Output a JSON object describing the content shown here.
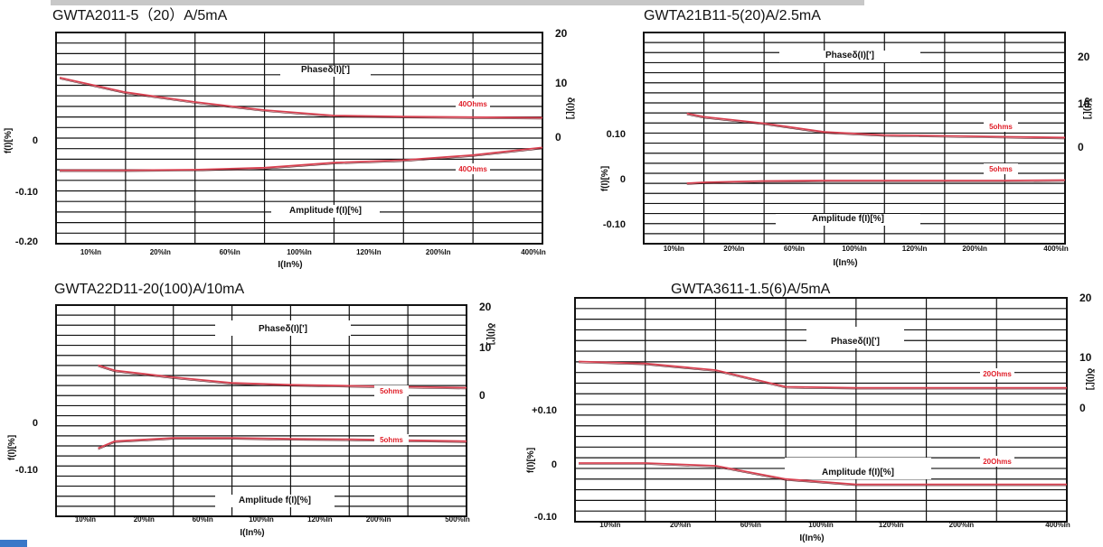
{
  "chart_data": [
    {
      "type": "line",
      "title": "GWTA2011-5（20）A/5mA",
      "xlabel": "I(In%)",
      "categories": [
        "10%In",
        "20%In",
        "60%In",
        "100%In",
        "120%In",
        "200%In",
        "400%In"
      ],
      "y_left_ticks": [
        "0",
        "-0.10",
        "-0.20"
      ],
      "y_left_label": "f(I)[%]",
      "y_right_ticks": [
        "20",
        "10",
        "0"
      ],
      "y_right_label": "δ(I)[']",
      "phase_label": "Phaseδ(I)[']",
      "amplitude_label": "Amplitude f(I)[%]",
      "series": [
        {
          "name": "40Ohms",
          "axis": "phase",
          "x": [
            1,
            10,
            20,
            60,
            100,
            120,
            200,
            400
          ],
          "values": [
            11,
            8.3,
            6.5,
            5,
            4,
            3.8,
            3.7,
            3.6
          ]
        },
        {
          "name": "40Ohms",
          "axis": "amplitude",
          "x": [
            1,
            10,
            20,
            60,
            100,
            120,
            200,
            400
          ],
          "values": [
            -0.06,
            -0.06,
            -0.059,
            -0.055,
            -0.045,
            -0.04,
            -0.03,
            -0.015
          ]
        }
      ]
    },
    {
      "type": "line",
      "title": "GWTA21B11-5(20)A/2.5mA",
      "xlabel": "I(In%)",
      "categories": [
        "10%In",
        "20%In",
        "60%In",
        "100%In",
        "120%In",
        "200%In",
        "400%In"
      ],
      "y_left_ticks": [
        "0.10",
        "0",
        "-0.10"
      ],
      "y_left_label": "f(I)[%]",
      "y_right_ticks": [
        "20",
        "10",
        "0"
      ],
      "y_right_label": "δ(I)[']",
      "phase_label": "Phaseδ(I)[']",
      "amplitude_label": "Amplitude f(I)[%]",
      "series": [
        {
          "name": "5ohms",
          "axis": "phase",
          "x": [
            5,
            10,
            20,
            60,
            100,
            120,
            200,
            400
          ],
          "values": [
            7.8,
            7,
            5.5,
            3.5,
            2.8,
            2.6,
            2.4,
            2.2
          ]
        },
        {
          "name": "5ohms",
          "axis": "amplitude",
          "x": [
            5,
            10,
            20,
            60,
            100,
            120,
            200,
            400
          ],
          "values": [
            -0.01,
            -0.008,
            -0.005,
            -0.004,
            -0.004,
            -0.004,
            -0.004,
            -0.003
          ]
        }
      ]
    },
    {
      "type": "line",
      "title": "GWTA22D11-20(100)A/10mA",
      "xlabel": "I(In%)",
      "categories": [
        "10%In",
        "20%In",
        "60%In",
        "100%In",
        "120%In",
        "200%In",
        "500%In"
      ],
      "y_left_ticks": [
        "0",
        "-0.10"
      ],
      "y_left_label": "f(I)[%]",
      "y_right_ticks": [
        "20",
        "10",
        "0"
      ],
      "y_right_label": "δ(I)[']",
      "phase_label": "Phaseδ(I)[']",
      "amplitude_label": "Amplitude f(I)[%]",
      "series": [
        {
          "name": "5ohms",
          "axis": "phase",
          "x": [
            5,
            10,
            20,
            60,
            100,
            120,
            200,
            500
          ],
          "values": [
            6.3,
            5.2,
            3.8,
            2.6,
            2.2,
            2,
            1.8,
            1.6
          ]
        },
        {
          "name": "5ohms",
          "axis": "amplitude",
          "x": [
            5,
            10,
            20,
            60,
            100,
            120,
            200,
            500
          ],
          "values": [
            -0.055,
            -0.04,
            -0.033,
            -0.033,
            -0.035,
            -0.036,
            -0.038,
            -0.04
          ]
        }
      ]
    },
    {
      "type": "line",
      "title": "GWTA3611-1.5(6)A/5mA",
      "xlabel": "I(In%)",
      "categories": [
        "10%In",
        "20%In",
        "60%In",
        "100%In",
        "120%In",
        "200%In",
        "400%In"
      ],
      "y_left_ticks": [
        "+0.10",
        "0",
        "-0.10"
      ],
      "y_left_label": "f(I)[%]",
      "y_right_ticks": [
        "20",
        "10",
        "0"
      ],
      "y_right_label": "δ(I)[']",
      "phase_label": "Phaseδ(I)[']",
      "amplitude_label": "Amplitude f(I)[%]",
      "series": [
        {
          "name": "20Ohms",
          "axis": "phase",
          "x": [
            1,
            10,
            20,
            60,
            100,
            120,
            200,
            400
          ],
          "values": [
            9.2,
            8.8,
            7.5,
            4.2,
            4,
            4,
            4,
            4
          ]
        },
        {
          "name": "20Ohms",
          "axis": "amplitude",
          "x": [
            1,
            10,
            20,
            60,
            100,
            120,
            200,
            400
          ],
          "values": [
            0,
            0,
            -0.005,
            -0.03,
            -0.04,
            -0.04,
            -0.04,
            -0.04
          ]
        }
      ]
    }
  ]
}
